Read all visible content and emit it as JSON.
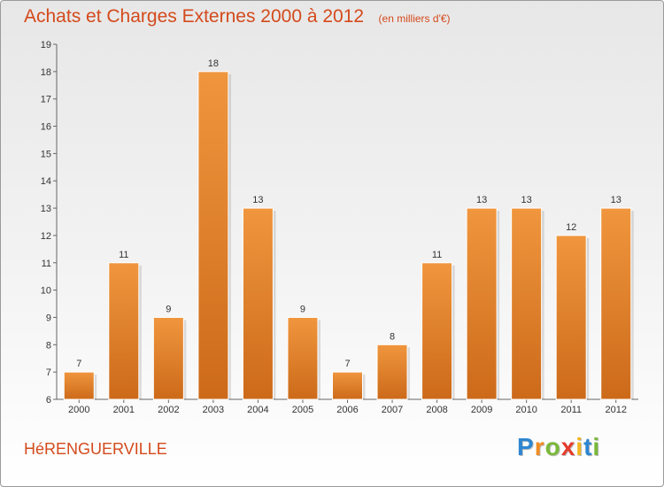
{
  "chart_data": {
    "type": "bar",
    "title": "Achats et Charges Externes 2000 à 2012",
    "subtitle": "(en milliers d'€)",
    "xlabel": "",
    "ylabel": "",
    "categories": [
      "2000",
      "2001",
      "2002",
      "2003",
      "2004",
      "2005",
      "2006",
      "2007",
      "2008",
      "2009",
      "2010",
      "2011",
      "2012"
    ],
    "values": [
      7,
      11,
      9,
      18,
      13,
      9,
      7,
      8,
      11,
      13,
      13,
      12,
      13
    ],
    "ylim": [
      6,
      19
    ],
    "yticks": [
      6,
      7,
      8,
      9,
      10,
      11,
      12,
      13,
      14,
      15,
      16,
      17,
      18,
      19
    ],
    "grid": false,
    "legend": "none",
    "bar_color": "#f0963e",
    "bar_color_dark": "#cc6a1a"
  },
  "footer": {
    "commune": "HéRENGUERVILLE",
    "brand_letters": [
      {
        "char": "P",
        "color": "#2e86d1"
      },
      {
        "char": "r",
        "color": "#f08c22"
      },
      {
        "char": "o",
        "color": "#7ab83a"
      },
      {
        "char": "x",
        "color": "#e43c2c"
      },
      {
        "char": "i",
        "color": "#f4b521"
      },
      {
        "char": "t",
        "color": "#2e86d1"
      },
      {
        "char": "i",
        "color": "#7ab83a"
      }
    ]
  }
}
